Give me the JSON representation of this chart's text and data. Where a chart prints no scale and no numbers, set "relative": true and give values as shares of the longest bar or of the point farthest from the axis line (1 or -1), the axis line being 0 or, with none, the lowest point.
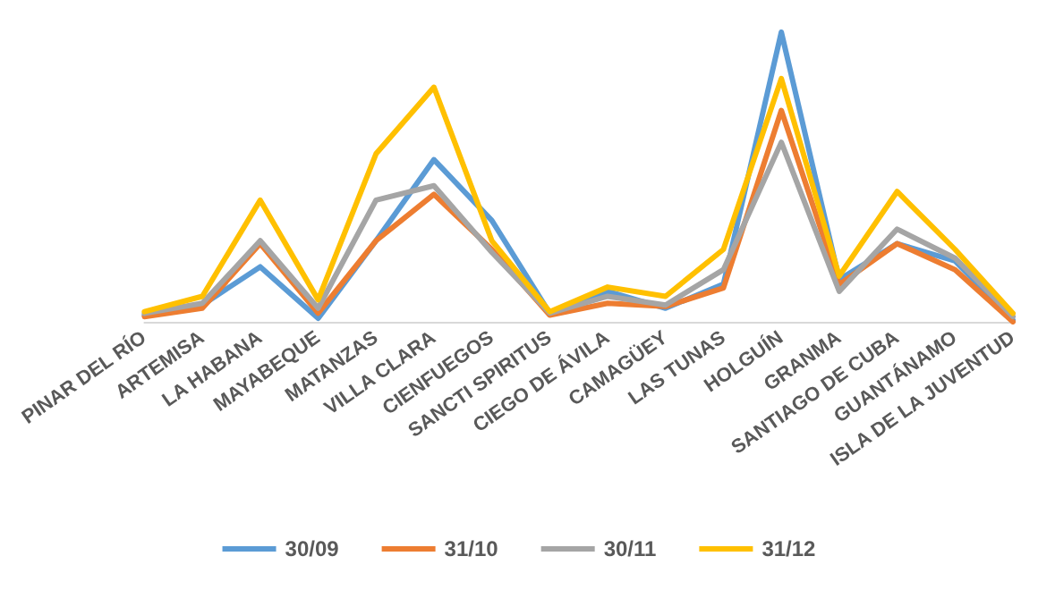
{
  "chart_data": {
    "type": "line",
    "relative": true,
    "grid": false,
    "legend": "bottom",
    "marker": "none",
    "line_style": "solid",
    "categories": [
      "PINAR DEL RÍO",
      "ARTEMISA",
      "LA HABANA",
      "MAYABEQUE",
      "MATANZAS",
      "VILLA CLARA",
      "CIENFUEGOS",
      "SANCTI SPIRITUS",
      "CIEGO DE ÁVILA",
      "CAMAGÜEY",
      "LAS TUNAS",
      "HOLGUÍN",
      "GRANMA",
      "SANTIAGO DE CUBA",
      "GUANTÁNAMO",
      "ISLA DE LA JUVENTUD"
    ],
    "series": [
      {
        "name": "30/09",
        "color": "#5b9bd5",
        "values": [
          0.023,
          0.058,
          0.19,
          0.012,
          0.28,
          0.56,
          0.35,
          0.03,
          0.105,
          0.047,
          0.13,
          1.0,
          0.146,
          0.27,
          0.21,
          0.006
        ]
      },
      {
        "name": "31/10",
        "color": "#ed7d31",
        "values": [
          0.018,
          0.047,
          0.27,
          0.03,
          0.28,
          0.44,
          0.25,
          0.023,
          0.064,
          0.053,
          0.117,
          0.73,
          0.129,
          0.27,
          0.18,
          0.0
        ]
      },
      {
        "name": "30/11",
        "color": "#a5a5a5",
        "values": [
          0.029,
          0.064,
          0.28,
          0.047,
          0.42,
          0.47,
          0.24,
          0.03,
          0.088,
          0.058,
          0.18,
          0.62,
          0.105,
          0.32,
          0.22,
          0.018
        ]
      },
      {
        "name": "31/12",
        "color": "#ffc000",
        "values": [
          0.035,
          0.088,
          0.42,
          0.076,
          0.58,
          0.81,
          0.28,
          0.035,
          0.12,
          0.088,
          0.25,
          0.84,
          0.158,
          0.45,
          0.25,
          0.029
        ]
      }
    ]
  }
}
